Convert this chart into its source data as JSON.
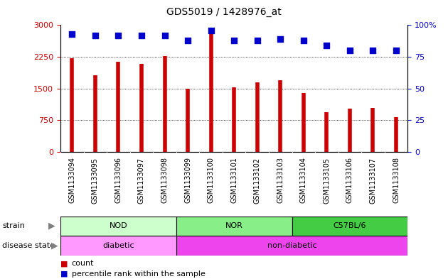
{
  "title": "GDS5019 / 1428976_at",
  "samples": [
    "GSM1133094",
    "GSM1133095",
    "GSM1133096",
    "GSM1133097",
    "GSM1133098",
    "GSM1133099",
    "GSM1133100",
    "GSM1133101",
    "GSM1133102",
    "GSM1133103",
    "GSM1133104",
    "GSM1133105",
    "GSM1133106",
    "GSM1133107",
    "GSM1133108"
  ],
  "counts": [
    2220,
    1820,
    2140,
    2080,
    2260,
    1500,
    2820,
    1530,
    1650,
    1690,
    1390,
    950,
    1020,
    1040,
    830
  ],
  "percentiles": [
    93,
    92,
    92,
    92,
    92,
    88,
    96,
    88,
    88,
    89,
    88,
    84,
    80,
    80,
    80
  ],
  "bar_color": "#cc0000",
  "dot_color": "#0000cc",
  "ylim_left": [
    0,
    3000
  ],
  "ylim_right": [
    0,
    100
  ],
  "yticks_left": [
    0,
    750,
    1500,
    2250,
    3000
  ],
  "yticks_right": [
    0,
    25,
    50,
    75,
    100
  ],
  "strain_groups": [
    {
      "label": "NOD",
      "start": 0,
      "end": 5,
      "color": "#ccffcc"
    },
    {
      "label": "NOR",
      "start": 5,
      "end": 10,
      "color": "#88ee88"
    },
    {
      "label": "C57BL/6",
      "start": 10,
      "end": 15,
      "color": "#44cc44"
    }
  ],
  "disease_groups": [
    {
      "label": "diabetic",
      "start": 0,
      "end": 5,
      "color": "#ff99ff"
    },
    {
      "label": "non-diabetic",
      "start": 5,
      "end": 15,
      "color": "#ee44ee"
    }
  ],
  "tick_area_color": "#bbbbbb",
  "background_color": "#ffffff",
  "bar_linewidth": 4,
  "dot_size": 28,
  "title_fontsize": 10,
  "axis_fontsize": 8,
  "label_fontsize": 8,
  "tick_fontsize": 7
}
